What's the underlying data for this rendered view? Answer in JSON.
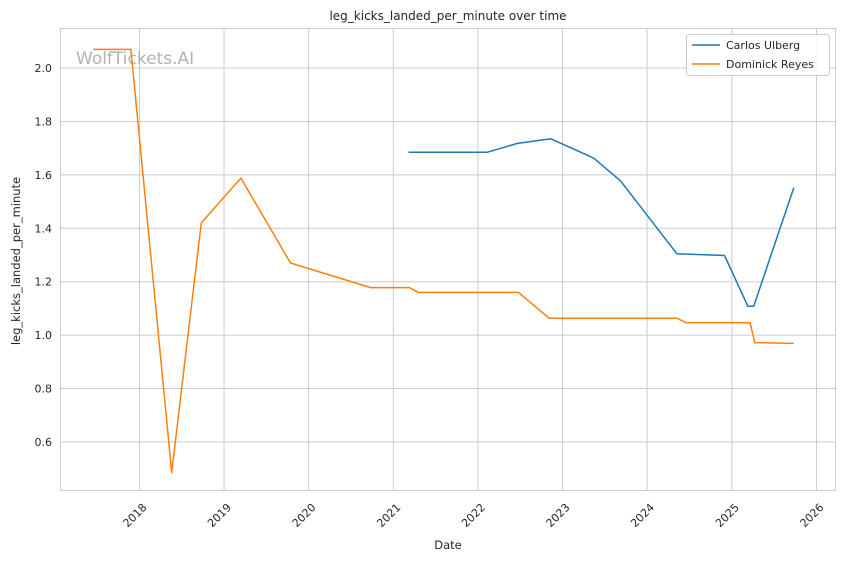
{
  "chart_data": {
    "type": "line",
    "title": "leg_kicks_landed_per_minute over time",
    "xlabel": "Date",
    "ylabel": "leg_kicks_landed_per_minute",
    "watermark": "WolfTickets.AI",
    "x_tick_labels": [
      "2018",
      "2019",
      "2020",
      "2021",
      "2022",
      "2023",
      "2024",
      "2025",
      "2026"
    ],
    "y_tick_labels": [
      "0.6",
      "0.8",
      "1.0",
      "1.2",
      "1.4",
      "1.6",
      "1.8",
      "2.0"
    ],
    "xlim": [
      "2017-01-23",
      "2026-03-22"
    ],
    "ylim": [
      0.42,
      2.15
    ],
    "grid": true,
    "legend_position": "top-right",
    "series": [
      {
        "name": "Carlos Ulberg",
        "color": "#1f77b4",
        "points": [
          {
            "x": "2021-03-07",
            "y": 1.685
          },
          {
            "x": "2022-02-11",
            "y": 1.685
          },
          {
            "x": "2022-06-20",
            "y": 1.718
          },
          {
            "x": "2022-11-12",
            "y": 1.735
          },
          {
            "x": "2023-05-15",
            "y": 1.663
          },
          {
            "x": "2023-09-08",
            "y": 1.578
          },
          {
            "x": "2024-05-08",
            "y": 1.305
          },
          {
            "x": "2024-11-30",
            "y": 1.298
          },
          {
            "x": "2025-03-11",
            "y": 1.108
          },
          {
            "x": "2025-04-05",
            "y": 1.108
          },
          {
            "x": "2025-09-25",
            "y": 1.552
          }
        ]
      },
      {
        "name": "Dominick Reyes",
        "color": "#ff7f0e",
        "points": [
          {
            "x": "2017-06-15",
            "y": 2.07
          },
          {
            "x": "2017-11-25",
            "y": 2.07
          },
          {
            "x": "2018-05-20",
            "y": 0.485
          },
          {
            "x": "2018-09-25",
            "y": 1.42
          },
          {
            "x": "2019-03-15",
            "y": 1.588
          },
          {
            "x": "2019-10-15",
            "y": 1.27
          },
          {
            "x": "2020-09-25",
            "y": 1.178
          },
          {
            "x": "2021-03-10",
            "y": 1.178
          },
          {
            "x": "2021-04-20",
            "y": 1.16
          },
          {
            "x": "2022-06-25",
            "y": 1.16
          },
          {
            "x": "2022-11-05",
            "y": 1.063
          },
          {
            "x": "2024-05-10",
            "y": 1.063
          },
          {
            "x": "2024-06-15",
            "y": 1.047
          },
          {
            "x": "2024-12-10",
            "y": 1.047
          },
          {
            "x": "2025-03-20",
            "y": 1.047
          },
          {
            "x": "2025-04-10",
            "y": 0.972
          },
          {
            "x": "2025-09-25",
            "y": 0.969
          }
        ]
      }
    ]
  }
}
